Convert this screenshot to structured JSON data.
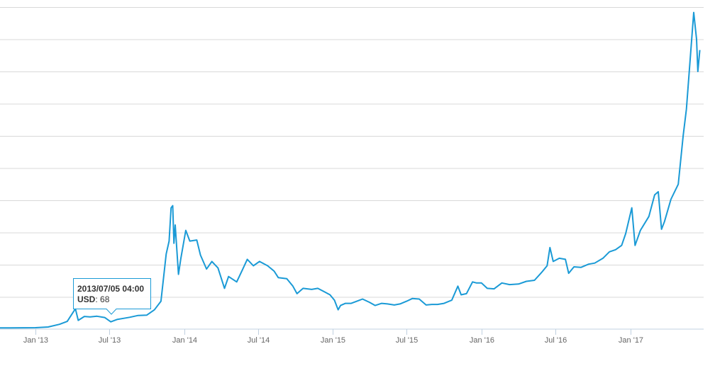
{
  "chart_data": {
    "type": "line",
    "title": "",
    "xlabel": "",
    "ylabel": "",
    "x_tick_labels": [
      "Jan '13",
      "Jul '13",
      "Jan '14",
      "Jul '14",
      "Jan '15",
      "Jul '15",
      "Jan '16",
      "Jul '16",
      "Jan '17"
    ],
    "y_gridlines": 10,
    "grid": "horizontal",
    "legend": "none",
    "series": [
      {
        "color": "#1a9ad6",
        "points": [
          [
            "2012-09-15",
            11
          ],
          [
            "2012-11-01",
            11
          ],
          [
            "2013-01-01",
            13
          ],
          [
            "2013-02-01",
            20
          ],
          [
            "2013-03-01",
            45
          ],
          [
            "2013-03-20",
            72
          ],
          [
            "2013-04-09",
            190
          ],
          [
            "2013-04-16",
            82
          ],
          [
            "2013-05-01",
            118
          ],
          [
            "2013-05-15",
            114
          ],
          [
            "2013-06-01",
            120
          ],
          [
            "2013-06-20",
            108
          ],
          [
            "2013-07-05",
            68
          ],
          [
            "2013-07-20",
            90
          ],
          [
            "2013-08-05",
            100
          ],
          [
            "2013-08-20",
            110
          ],
          [
            "2013-09-10",
            127
          ],
          [
            "2013-10-01",
            130
          ],
          [
            "2013-10-20",
            180
          ],
          [
            "2013-11-05",
            260
          ],
          [
            "2013-11-18",
            700
          ],
          [
            "2013-11-25",
            820
          ],
          [
            "2013-11-30",
            1130
          ],
          [
            "2013-12-04",
            1150
          ],
          [
            "2013-12-07",
            800
          ],
          [
            "2013-12-10",
            970
          ],
          [
            "2013-12-18",
            510
          ],
          [
            "2013-12-24",
            660
          ],
          [
            "2014-01-05",
            920
          ],
          [
            "2014-01-15",
            820
          ],
          [
            "2014-02-01",
            830
          ],
          [
            "2014-02-10",
            690
          ],
          [
            "2014-02-25",
            560
          ],
          [
            "2014-03-10",
            630
          ],
          [
            "2014-03-25",
            570
          ],
          [
            "2014-04-10",
            380
          ],
          [
            "2014-04-20",
            490
          ],
          [
            "2014-05-10",
            440
          ],
          [
            "2014-05-25",
            560
          ],
          [
            "2014-06-05",
            650
          ],
          [
            "2014-06-20",
            590
          ],
          [
            "2014-07-05",
            630
          ],
          [
            "2014-07-25",
            590
          ],
          [
            "2014-08-10",
            540
          ],
          [
            "2014-08-20",
            480
          ],
          [
            "2014-09-10",
            470
          ],
          [
            "2014-09-25",
            400
          ],
          [
            "2014-10-05",
            330
          ],
          [
            "2014-10-20",
            380
          ],
          [
            "2014-11-10",
            370
          ],
          [
            "2014-11-25",
            380
          ],
          [
            "2014-12-10",
            350
          ],
          [
            "2014-12-25",
            320
          ],
          [
            "2015-01-05",
            270
          ],
          [
            "2015-01-14",
            180
          ],
          [
            "2015-01-20",
            220
          ],
          [
            "2015-02-01",
            240
          ],
          [
            "2015-02-15",
            240
          ],
          [
            "2015-03-01",
            260
          ],
          [
            "2015-03-15",
            280
          ],
          [
            "2015-04-01",
            250
          ],
          [
            "2015-04-15",
            220
          ],
          [
            "2015-05-01",
            240
          ],
          [
            "2015-05-15",
            235
          ],
          [
            "2015-06-01",
            225
          ],
          [
            "2015-06-15",
            235
          ],
          [
            "2015-07-01",
            260
          ],
          [
            "2015-07-15",
            285
          ],
          [
            "2015-08-01",
            280
          ],
          [
            "2015-08-18",
            225
          ],
          [
            "2015-09-01",
            230
          ],
          [
            "2015-09-15",
            230
          ],
          [
            "2015-10-01",
            240
          ],
          [
            "2015-10-20",
            270
          ],
          [
            "2015-11-04",
            400
          ],
          [
            "2015-11-12",
            320
          ],
          [
            "2015-11-25",
            330
          ],
          [
            "2015-12-10",
            440
          ],
          [
            "2015-12-20",
            430
          ],
          [
            "2016-01-01",
            430
          ],
          [
            "2016-01-15",
            380
          ],
          [
            "2016-02-01",
            375
          ],
          [
            "2016-02-20",
            430
          ],
          [
            "2016-03-10",
            415
          ],
          [
            "2016-04-01",
            420
          ],
          [
            "2016-04-20",
            445
          ],
          [
            "2016-05-10",
            455
          ],
          [
            "2016-05-28",
            530
          ],
          [
            "2016-06-10",
            590
          ],
          [
            "2016-06-17",
            760
          ],
          [
            "2016-06-25",
            630
          ],
          [
            "2016-07-10",
            660
          ],
          [
            "2016-07-25",
            650
          ],
          [
            "2016-08-02",
            520
          ],
          [
            "2016-08-15",
            580
          ],
          [
            "2016-09-01",
            575
          ],
          [
            "2016-09-20",
            605
          ],
          [
            "2016-10-05",
            615
          ],
          [
            "2016-10-25",
            660
          ],
          [
            "2016-11-10",
            720
          ],
          [
            "2016-11-25",
            740
          ],
          [
            "2016-12-10",
            780
          ],
          [
            "2016-12-20",
            890
          ],
          [
            "2017-01-04",
            1130
          ],
          [
            "2017-01-12",
            780
          ],
          [
            "2017-01-25",
            920
          ],
          [
            "2017-02-15",
            1050
          ],
          [
            "2017-03-01",
            1250
          ],
          [
            "2017-03-10",
            1280
          ],
          [
            "2017-03-18",
            930
          ],
          [
            "2017-03-25",
            1000
          ],
          [
            "2017-04-10",
            1210
          ],
          [
            "2017-04-28",
            1350
          ],
          [
            "2017-05-10",
            1800
          ],
          [
            "2017-05-18",
            2050
          ],
          [
            "2017-05-25",
            2400
          ],
          [
            "2017-06-05",
            2950
          ],
          [
            "2017-06-12",
            2700
          ],
          [
            "2017-06-15",
            2400
          ],
          [
            "2017-06-20",
            2600
          ]
        ]
      }
    ],
    "tooltip": {
      "title": "2013/07/05 04:00",
      "key": "USD",
      "value": "68"
    }
  }
}
